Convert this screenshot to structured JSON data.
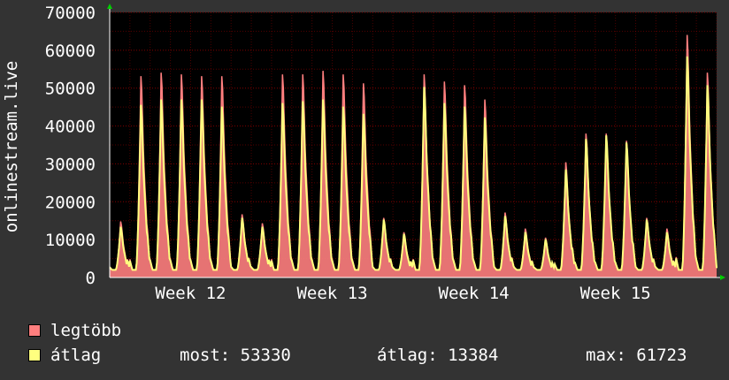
{
  "chart_data": {
    "type": "area",
    "ylabel": "onlinestream.live",
    "ylim": [
      0,
      70000
    ],
    "y_ticks": [
      0,
      10000,
      20000,
      30000,
      40000,
      50000,
      60000,
      70000
    ],
    "x_ticks": [
      "Week 12",
      "Week 13",
      "Week 14",
      "Week 15"
    ],
    "grid": true,
    "legend_placement": "bottom",
    "series": [
      {
        "name": "legtöbb",
        "color": "#ff7f7f",
        "peaks": [
          15500,
          56000,
          57000,
          56500,
          56000,
          56000,
          17500,
          15000,
          56500,
          56500,
          57500,
          56500,
          54000,
          16500,
          12500,
          56500,
          54500,
          53500,
          49500,
          18000,
          13500,
          11000,
          32000,
          40000,
          40000,
          38000,
          16500,
          13500,
          67500,
          57000
        ]
      },
      {
        "name": "átlag",
        "color": "#ffff7f",
        "peaks": [
          14000,
          48000,
          49500,
          49500,
          49500,
          47500,
          16500,
          14000,
          48500,
          49000,
          49500,
          47500,
          45500,
          16000,
          12000,
          53000,
          48500,
          47500,
          44500,
          17000,
          12500,
          10500,
          30000,
          38500,
          39500,
          37500,
          16000,
          12500,
          61500,
          53500
        ]
      }
    ]
  },
  "colors": {
    "background": "#333333",
    "plot_background": "#000000",
    "grid": "#8b0000",
    "axis": "#ffffff",
    "arrow": "#00cc00"
  },
  "legend": {
    "max_label": "legtöbb",
    "avg_label": "átlag",
    "now": "most: 53330",
    "average": "átlag: 13384",
    "maximum": "max: 61723"
  }
}
